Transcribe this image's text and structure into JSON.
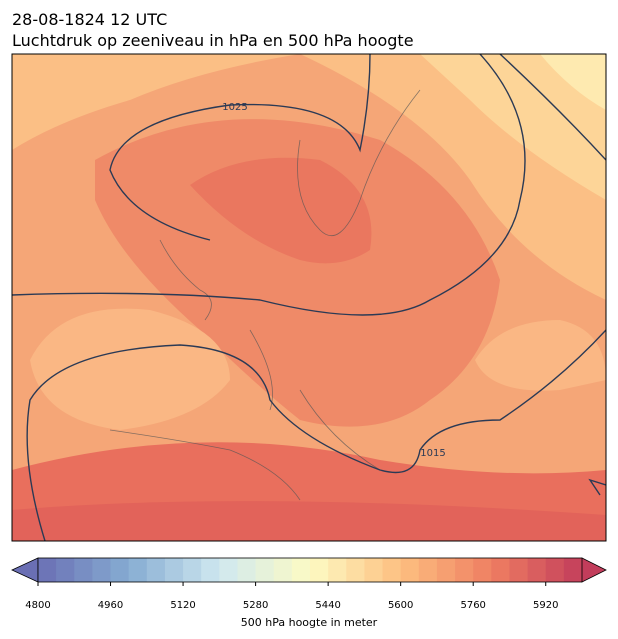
{
  "header": {
    "date": "28-08-1824 12 UTC",
    "title": "Luchtdruk op zeeniveau in hPa en 500 hPa hoogte"
  },
  "map": {
    "isobar_labels": [
      "1025",
      "1015"
    ]
  },
  "colorbar": {
    "lim": [
      4800,
      6000
    ],
    "ticks": [
      4800,
      4960,
      5120,
      5280,
      5440,
      5600,
      5760,
      5920
    ],
    "label": "500 hPa hoogte in meter",
    "colors": [
      "#6a6fb4",
      "#86acd2",
      "#cfe8f0",
      "#fdfbc4",
      "#fdbf80",
      "#ef7f62",
      "#c23d5b"
    ]
  }
}
